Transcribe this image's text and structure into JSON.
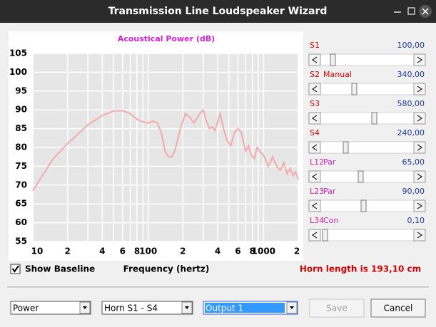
{
  "window": {
    "title": "Transmission Line Loudspeaker Wizard"
  },
  "chart_data": {
    "type": "line",
    "title": "Acoustical Power (dB)",
    "x_label": "Frequency (hertz)",
    "x": [
      10,
      15,
      20,
      30,
      40,
      50,
      60,
      70,
      80,
      90,
      100,
      110,
      120,
      130,
      140,
      150,
      160,
      170,
      190,
      210,
      230,
      250,
      280,
      300,
      320,
      340,
      360,
      380,
      420,
      450,
      480,
      520,
      560,
      600,
      640,
      700,
      740,
      780,
      830,
      880,
      930,
      1000,
      1100,
      1200,
      1300,
      1400,
      1500,
      1600,
      1700,
      1800,
      1900,
      2000
    ],
    "values": [
      68.5,
      77,
      81,
      86,
      88.5,
      89.7,
      89.8,
      89,
      87.5,
      86.8,
      86.5,
      87,
      86.5,
      84,
      79,
      77.5,
      77.5,
      79,
      85,
      89,
      88,
      86.5,
      89,
      90,
      87,
      85,
      85.5,
      84.5,
      89,
      85,
      82,
      80.5,
      84,
      85,
      84,
      79,
      80.5,
      78,
      77,
      80,
      79,
      78,
      75,
      77.5,
      75,
      74,
      76,
      73,
      74.5,
      72.5,
      73.5,
      71.5
    ],
    "color": "#f4aaaa",
    "xlim": [
      10,
      2000
    ],
    "ylim": [
      55,
      105
    ],
    "x_log": true,
    "grid": true,
    "xticks": [
      10,
      {
        "value": 20,
        "label": "2"
      },
      {
        "value": 40,
        "label": "4"
      },
      {
        "value": 60,
        "label": "6"
      },
      {
        "value": 80,
        "label": "8"
      },
      100,
      {
        "value": 200,
        "label": "2"
      },
      {
        "value": 400,
        "label": "4"
      },
      {
        "value": 600,
        "label": "6"
      },
      {
        "value": 800,
        "label": "8"
      },
      1000,
      {
        "value": 2000,
        "label": "2"
      }
    ],
    "x_minor_grid": [
      30,
      50,
      70,
      90,
      300,
      500,
      700,
      900
    ],
    "yticks": [
      55,
      60,
      65,
      70,
      75,
      80,
      85,
      90,
      95,
      100,
      105
    ]
  },
  "sliders": [
    {
      "name": "S1",
      "value": "100,00"
    },
    {
      "name": "S2",
      "mode": "Manual",
      "value": "340,00"
    },
    {
      "name": "S3",
      "value": "580,00"
    },
    {
      "name": "S4",
      "value": "240,00"
    },
    {
      "name": "L12",
      "mode": "Par",
      "value": "65,00"
    },
    {
      "name": "L23",
      "mode": "Par",
      "value": "90,00"
    },
    {
      "name": "L34",
      "mode": "Con",
      "value": "0,10"
    }
  ],
  "baseline": {
    "label": "Show Baseline",
    "checked": true
  },
  "horn_length": "Horn length is 193,10 cm",
  "dropdowns": [
    {
      "text": "Power"
    },
    {
      "text": "Horn S1 - S4"
    },
    {
      "text": "Output 1",
      "selected": true
    }
  ],
  "buttons": [
    {
      "text": "Save",
      "disabled": true
    },
    {
      "text": "Cancel"
    }
  ]
}
